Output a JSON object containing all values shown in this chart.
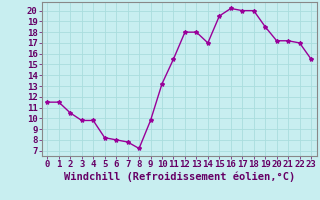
{
  "x": [
    0,
    1,
    2,
    3,
    4,
    5,
    6,
    7,
    8,
    9,
    10,
    11,
    12,
    13,
    14,
    15,
    16,
    17,
    18,
    19,
    20,
    21,
    22,
    23
  ],
  "y": [
    11.5,
    11.5,
    10.5,
    9.8,
    9.8,
    8.2,
    8.0,
    7.8,
    7.2,
    9.8,
    13.2,
    15.5,
    18.0,
    18.0,
    17.0,
    19.5,
    20.2,
    20.0,
    20.0,
    18.5,
    17.2,
    17.2,
    17.0,
    15.5
  ],
  "line_color": "#990099",
  "marker": "*",
  "marker_size": 3,
  "xlabel": "Windchill (Refroidissement éolien,°C)",
  "ylabel_ticks": [
    7,
    8,
    9,
    10,
    11,
    12,
    13,
    14,
    15,
    16,
    17,
    18,
    19,
    20
  ],
  "ylim": [
    6.5,
    20.8
  ],
  "xlim": [
    -0.5,
    23.5
  ],
  "bg_color": "#c8eef0",
  "grid_color": "#aadddd",
  "tick_fontsize": 6.5,
  "xlabel_fontsize": 7.5,
  "line_width": 1.0
}
